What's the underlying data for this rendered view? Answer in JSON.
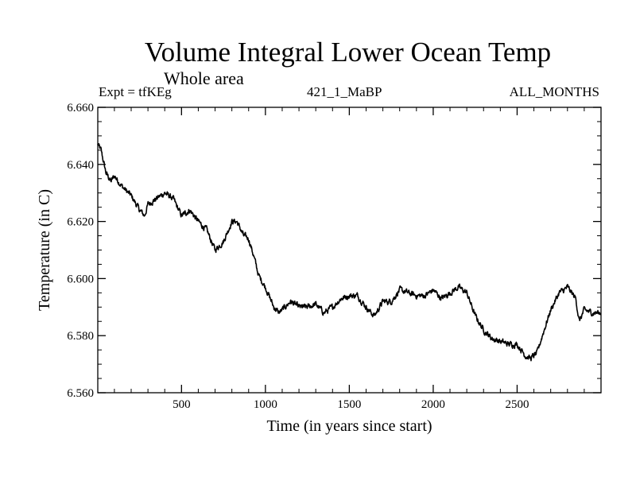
{
  "chart_data": {
    "type": "line",
    "title": "Volume Integral Lower Ocean Temp",
    "subtitle": "Whole area",
    "left_annotation": "Expt = tfKEg",
    "center_annotation": "421_1_MaBP",
    "right_annotation": "ALL_MONTHS",
    "xlabel": "Time (in years since start)",
    "ylabel": "Temperature (in C)",
    "xlim": [
      1,
      3000
    ],
    "ylim": [
      6.56,
      6.66
    ],
    "x_ticks": [
      500,
      1000,
      1500,
      2000,
      2500
    ],
    "x_tick_labels": [
      "500",
      "1000",
      "1500",
      "2000",
      "2500"
    ],
    "y_ticks": [
      6.56,
      6.58,
      6.6,
      6.62,
      6.64,
      6.66
    ],
    "y_tick_labels": [
      "6.560",
      "6.580",
      "6.600",
      "6.620",
      "6.640",
      "6.660"
    ],
    "grid": false,
    "series": [
      {
        "color": "#000000",
        "x": [
          1,
          20,
          50,
          80,
          100,
          150,
          200,
          250,
          280,
          300,
          350,
          400,
          450,
          500,
          550,
          600,
          650,
          700,
          750,
          800,
          830,
          870,
          900,
          930,
          960,
          1000,
          1050,
          1080,
          1100,
          1150,
          1200,
          1250,
          1300,
          1350,
          1400,
          1450,
          1500,
          1550,
          1600,
          1630,
          1650,
          1700,
          1750,
          1800,
          1850,
          1900,
          1950,
          2000,
          2050,
          2100,
          2150,
          2200,
          2250,
          2300,
          2350,
          2400,
          2450,
          2500,
          2550,
          2580,
          2620,
          2650,
          2700,
          2750,
          2780,
          2800,
          2850,
          2870,
          2900,
          2950,
          3000
        ],
        "y": [
          6.647,
          6.645,
          6.637,
          6.634,
          6.636,
          6.632,
          6.629,
          6.624,
          6.622,
          6.626,
          6.628,
          6.63,
          6.628,
          6.622,
          6.624,
          6.62,
          6.617,
          6.61,
          6.613,
          6.62,
          6.62,
          6.615,
          6.614,
          6.608,
          6.601,
          6.597,
          6.59,
          6.588,
          6.589,
          6.592,
          6.59,
          6.59,
          6.591,
          6.588,
          6.59,
          6.593,
          6.594,
          6.594,
          6.59,
          6.588,
          6.587,
          6.592,
          6.592,
          6.596,
          6.595,
          6.594,
          6.594,
          6.596,
          6.593,
          6.595,
          6.597,
          6.595,
          6.587,
          6.582,
          6.579,
          6.578,
          6.577,
          6.577,
          6.573,
          6.572,
          6.574,
          6.58,
          6.589,
          6.595,
          6.596,
          6.597,
          6.593,
          6.585,
          6.589,
          6.588,
          6.588
        ]
      }
    ]
  }
}
